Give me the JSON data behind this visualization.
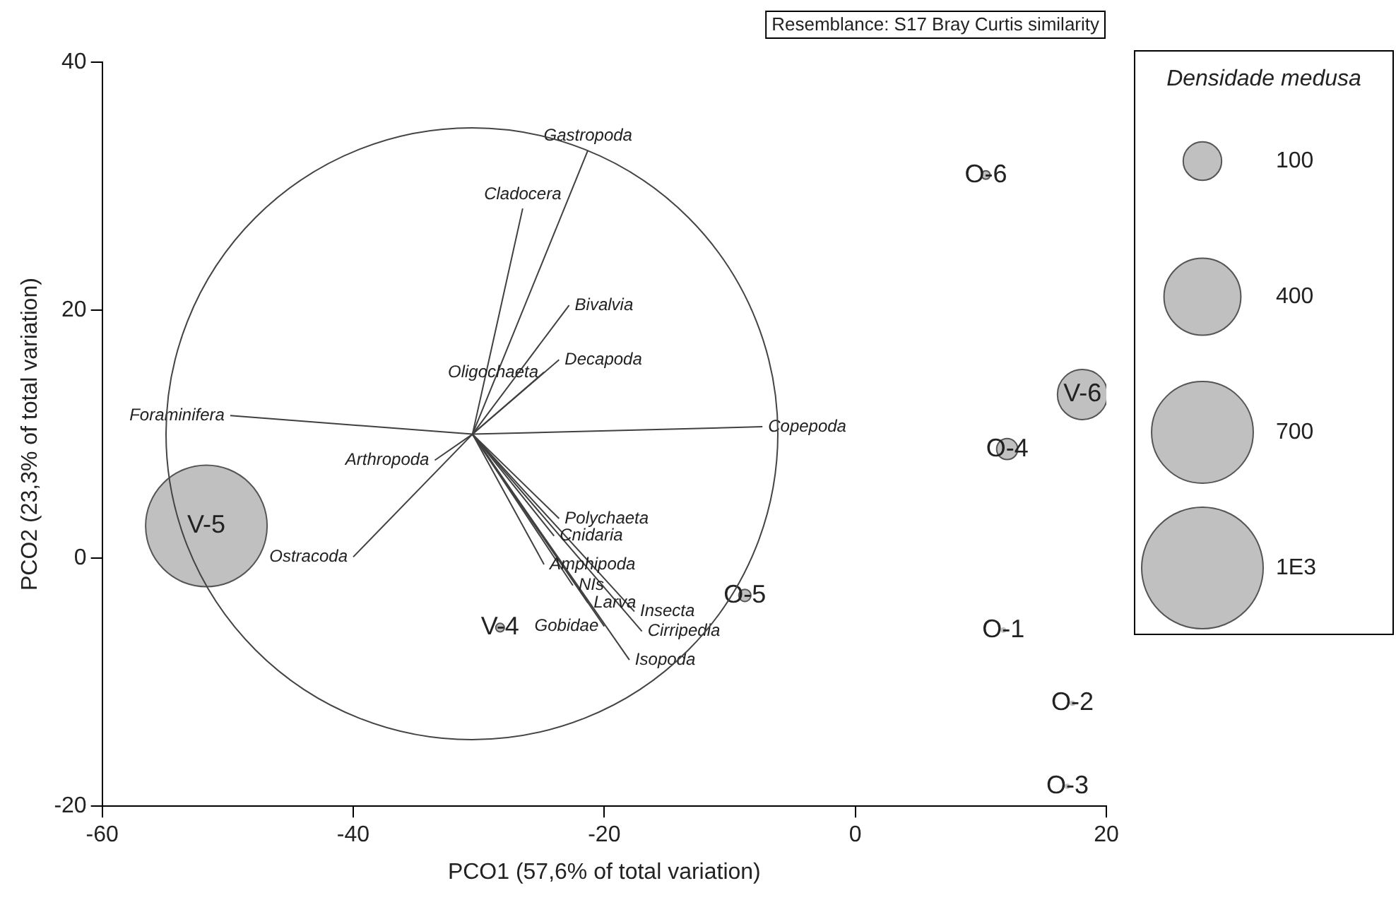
{
  "chart_data": {
    "type": "bubble",
    "xlabel": "PCO1 (57,6% of total variation)",
    "ylabel": "PCO2 (23,3% of total variation)",
    "legend_title": "Densidade medusa",
    "size_legend": [
      100,
      400,
      700,
      {
        "value": 1000,
        "label": "1E3"
      }
    ],
    "xlim": [
      -60,
      20
    ],
    "ylim": [
      -20,
      40
    ],
    "xticks": [
      -60,
      -40,
      -20,
      0,
      20
    ],
    "yticks": [
      -20,
      0,
      20,
      40
    ],
    "grid": false,
    "annotations": [
      "Resemblance: S17 Bray Curtis similarity",
      {
        "text": "Gastropoda",
        "x": -21.3,
        "y": 32.9
      },
      {
        "text": "Cladocera",
        "x": -26.5,
        "y": 28.2
      },
      {
        "text": "Bivalvia",
        "x": -22.8,
        "y": 20.4
      },
      {
        "text": "Decapoda",
        "x": -23.6,
        "y": 16.0
      },
      {
        "text": "Oligochaeta",
        "x": -24.8,
        "y": 15.0
      },
      {
        "text": "Foraminifera",
        "x": -49.8,
        "y": 11.5
      },
      {
        "text": "Copepoda",
        "x": -7.4,
        "y": 10.6
      },
      {
        "text": "Arthropoda",
        "x": -33.5,
        "y": 7.9
      },
      {
        "text": "Ostracoda",
        "x": -40.0,
        "y": 0.1
      },
      {
        "text": "Polychaeta",
        "x": -23.6,
        "y": 3.2
      },
      {
        "text": "Cnidaria",
        "x": -24.0,
        "y": 1.8
      },
      {
        "text": "Amphipoda",
        "x": -24.8,
        "y": -0.5
      },
      {
        "text": "NIs",
        "x": -22.5,
        "y": -2.2
      },
      {
        "text": "Larva",
        "x": -21.3,
        "y": -3.6
      },
      {
        "text": "Insecta",
        "x": -17.6,
        "y": -4.3
      },
      {
        "text": "Gobidae",
        "x": -20.0,
        "y": -5.5
      },
      {
        "text": "Cirripedia",
        "x": -17.0,
        "y": -5.9
      },
      {
        "text": "Isopoda",
        "x": -18.0,
        "y": -8.2
      },
      {
        "text": "V-5",
        "x": -51.7,
        "y": 2.6
      },
      {
        "text": "V-6",
        "x": 18.1,
        "y": 13.2
      },
      {
        "text": "O-4",
        "x": 12.1,
        "y": 8.8
      },
      {
        "text": "O-5",
        "x": -8.8,
        "y": -3.0
      },
      {
        "text": "O-6",
        "x": 10.4,
        "y": 30.9
      },
      {
        "text": "V-4",
        "x": -28.3,
        "y": -5.6
      },
      {
        "text": "O-1",
        "x": 11.8,
        "y": -5.8
      },
      {
        "text": "O-2",
        "x": 17.3,
        "y": -11.7
      },
      {
        "text": "O-3",
        "x": 16.9,
        "y": -18.4
      }
    ],
    "series": [
      {
        "color": "#c0c0c0",
        "x": [
          -51.7,
          18.1,
          12.1,
          -8.8,
          10.4,
          -28.3,
          16.9,
          11.8,
          17.3
        ],
        "values": [
          2.6,
          13.2,
          8.8,
          -3.0,
          30.9,
          -5.6,
          -18.4,
          -5.8,
          -11.7
        ],
        "sizes": [
          1000,
          170,
          30,
          10,
          5,
          5,
          2,
          2,
          2
        ]
      },
      {
        "type": "line",
        "color": "#404040",
        "x": [
          -30.5,
          -21.3
        ],
        "values": [
          10.0,
          32.9
        ]
      },
      {
        "type": "line",
        "color": "#404040",
        "x": [
          -30.5,
          -26.5
        ],
        "values": [
          10.0,
          28.2
        ]
      },
      {
        "type": "line",
        "color": "#404040",
        "x": [
          -30.5,
          -22.8
        ],
        "values": [
          10.0,
          20.4
        ]
      },
      {
        "type": "line",
        "color": "#404040",
        "x": [
          -30.5,
          -23.6
        ],
        "values": [
          10.0,
          16.0
        ]
      },
      {
        "type": "line",
        "color": "#404040",
        "x": [
          -30.5,
          -24.8
        ],
        "values": [
          10.0,
          15.0
        ]
      },
      {
        "type": "line",
        "color": "#404040",
        "x": [
          -30.5,
          -49.8
        ],
        "values": [
          10.0,
          11.5
        ]
      },
      {
        "type": "line",
        "color": "#404040",
        "x": [
          -30.5,
          -7.4
        ],
        "values": [
          10.0,
          10.6
        ]
      },
      {
        "type": "line",
        "color": "#404040",
        "x": [
          -30.5,
          -33.5
        ],
        "values": [
          10.0,
          7.9
        ]
      },
      {
        "type": "line",
        "color": "#404040",
        "x": [
          -30.5,
          -40.0
        ],
        "values": [
          10.0,
          0.1
        ]
      },
      {
        "type": "line",
        "color": "#404040",
        "x": [
          -30.5,
          -23.6
        ],
        "values": [
          10.0,
          3.2
        ]
      },
      {
        "type": "line",
        "color": "#404040",
        "x": [
          -30.5,
          -24.0
        ],
        "values": [
          10.0,
          1.8
        ]
      },
      {
        "type": "line",
        "color": "#404040",
        "x": [
          -30.5,
          -24.8
        ],
        "values": [
          10.0,
          -0.5
        ]
      },
      {
        "type": "line",
        "color": "#404040",
        "x": [
          -30.5,
          -22.5
        ],
        "values": [
          10.0,
          -2.2
        ]
      },
      {
        "type": "line",
        "color": "#404040",
        "x": [
          -30.5,
          -21.3
        ],
        "values": [
          10.0,
          -3.6
        ]
      },
      {
        "type": "line",
        "color": "#404040",
        "x": [
          -30.5,
          -17.6
        ],
        "values": [
          10.0,
          -4.3
        ]
      },
      {
        "type": "line",
        "color": "#404040",
        "x": [
          -30.5,
          -20.0
        ],
        "values": [
          10.0,
          -5.5
        ]
      },
      {
        "type": "line",
        "color": "#404040",
        "x": [
          -30.5,
          -17.0
        ],
        "values": [
          10.0,
          -5.9
        ]
      },
      {
        "type": "line",
        "color": "#404040",
        "x": [
          -30.5,
          -18.0
        ],
        "values": [
          10.0,
          -8.2
        ]
      }
    ]
  }
}
